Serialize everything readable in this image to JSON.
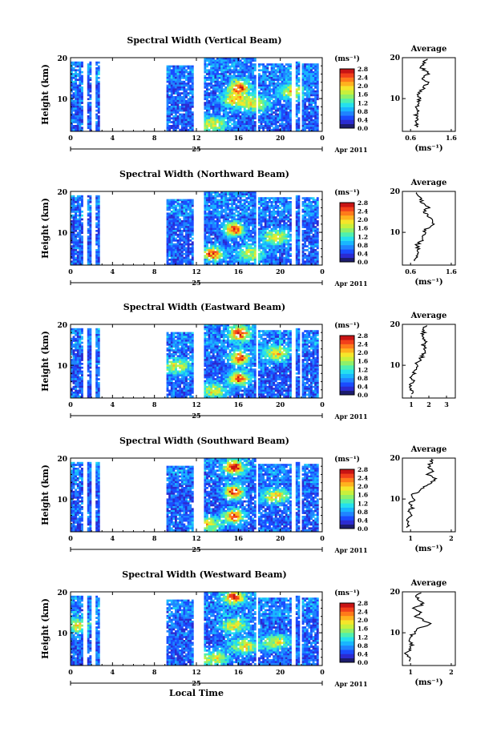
{
  "chart_data": [
    {
      "type": "heatmap",
      "title": "Spectral Width (Vertical Beam)",
      "ylabel": "Height (km)",
      "y_ticks": [
        "20",
        "10"
      ],
      "x_ticks": [
        "0",
        "4",
        "8",
        "12",
        "16",
        "20",
        "0"
      ],
      "date_label": "25",
      "month_label": "Apr 2011",
      "colorbar": {
        "unit": "(ms⁻¹)",
        "ticks": [
          "2.8",
          "2.4",
          "2.0",
          "1.6",
          "1.2",
          "0.8",
          "0.4",
          "0.0"
        ],
        "range": [
          0.0,
          2.8
        ]
      },
      "profile": {
        "title": "Average",
        "x_ticks": [
          "0.6",
          "1.6"
        ],
        "y_ticks": [
          "20",
          "10"
        ],
        "xlabel": "(ms⁻¹)",
        "height_km": [
          3,
          4,
          5,
          6,
          7,
          8,
          9,
          10,
          11,
          12,
          13,
          14,
          15,
          16,
          17,
          18,
          19,
          20
        ],
        "values": [
          0.72,
          0.74,
          0.76,
          0.72,
          0.78,
          0.75,
          0.8,
          0.82,
          0.78,
          0.85,
          0.95,
          1.02,
          0.9,
          1.05,
          0.92,
          0.85,
          0.95,
          0.98
        ]
      },
      "hot_spots": [
        [
          16,
          13,
          "peak"
        ],
        [
          15.5,
          10,
          "high"
        ],
        [
          17.5,
          9,
          "high"
        ],
        [
          21,
          12,
          "high"
        ],
        [
          13.5,
          4,
          "high"
        ]
      ]
    },
    {
      "type": "heatmap",
      "title": "Spectral Width (Northward Beam)",
      "ylabel": "Height (km)",
      "y_ticks": [
        "20",
        "10"
      ],
      "x_ticks": [
        "0",
        "4",
        "8",
        "12",
        "16",
        "20",
        "0"
      ],
      "date_label": "25",
      "month_label": "Apr 2011",
      "colorbar": {
        "unit": "(ms⁻¹)",
        "ticks": [
          "2.8",
          "2.4",
          "2.0",
          "1.6",
          "1.2",
          "0.8",
          "0.4",
          "0.0"
        ],
        "range": [
          0.0,
          2.8
        ]
      },
      "profile": {
        "title": "Average",
        "x_ticks": [
          "0.6",
          "1.6"
        ],
        "y_ticks": [
          "20",
          "10"
        ],
        "xlabel": "(ms⁻¹)",
        "height_km": [
          3,
          4,
          5,
          6,
          7,
          8,
          9,
          10,
          11,
          12,
          13,
          14,
          15,
          16,
          17,
          18,
          19,
          20
        ],
        "values": [
          0.7,
          0.72,
          0.78,
          0.8,
          0.75,
          0.9,
          0.88,
          0.95,
          1.0,
          1.2,
          1.1,
          1.05,
          0.95,
          1.02,
          0.92,
          0.85,
          0.8,
          0.78
        ]
      },
      "hot_spots": [
        [
          15.5,
          11,
          "peak"
        ],
        [
          13.5,
          5,
          "peak"
        ],
        [
          17,
          5,
          "high"
        ],
        [
          19.5,
          9,
          "high"
        ]
      ]
    },
    {
      "type": "heatmap",
      "title": "Spectral Width (Eastward Beam)",
      "ylabel": "Height (km)",
      "y_ticks": [
        "20",
        "10"
      ],
      "x_ticks": [
        "0",
        "4",
        "8",
        "12",
        "16",
        "20",
        "0"
      ],
      "date_label": "25",
      "month_label": "Apr 2011",
      "colorbar": {
        "unit": "(ms⁻¹)",
        "ticks": [
          "2.8",
          "2.4",
          "2.0",
          "1.6",
          "1.2",
          "0.8",
          "0.4",
          "0.0"
        ],
        "range": [
          0.0,
          2.8
        ]
      },
      "profile": {
        "title": "Average",
        "x_ticks": [
          "1",
          "2",
          "3"
        ],
        "y_ticks": [
          "20",
          "10"
        ],
        "xlabel": "",
        "height_km": [
          3,
          4,
          5,
          6,
          7,
          8,
          9,
          10,
          11,
          12,
          13,
          14,
          15,
          16,
          17,
          18,
          19,
          20
        ],
        "values": [
          1.0,
          1.05,
          0.95,
          1.1,
          1.0,
          1.15,
          1.2,
          1.3,
          1.4,
          1.6,
          1.7,
          1.8,
          1.65,
          1.85,
          1.6,
          1.7,
          1.75,
          1.8
        ]
      },
      "hot_spots": [
        [
          16,
          18,
          "peak"
        ],
        [
          16,
          12,
          "peak"
        ],
        [
          16,
          7,
          "peak"
        ],
        [
          13.5,
          4,
          "high"
        ],
        [
          19.5,
          13,
          "high"
        ],
        [
          10,
          10,
          "high"
        ]
      ]
    },
    {
      "type": "heatmap",
      "title": "Spectral Width (Southward Beam)",
      "ylabel": "Height (km)",
      "y_ticks": [
        "20",
        "10"
      ],
      "x_ticks": [
        "0",
        "4",
        "8",
        "12",
        "16",
        "20",
        "0"
      ],
      "date_label": "25",
      "month_label": "Apr 2011",
      "colorbar": {
        "unit": "(ms⁻¹)",
        "ticks": [
          "2.8",
          "2.4",
          "2.0",
          "1.6",
          "1.2",
          "0.8",
          "0.4",
          "0.0"
        ],
        "range": [
          0.0,
          2.8
        ]
      },
      "profile": {
        "title": "Average",
        "x_ticks": [
          "1",
          "2"
        ],
        "y_ticks": [
          "20",
          "10"
        ],
        "xlabel": "(ms⁻¹)",
        "height_km": [
          3,
          4,
          5,
          6,
          7,
          8,
          9,
          10,
          11,
          12,
          13,
          14,
          15,
          16,
          17,
          18,
          19,
          20
        ],
        "values": [
          0.9,
          0.95,
          0.9,
          1.0,
          0.95,
          1.05,
          1.0,
          1.1,
          1.05,
          1.2,
          1.35,
          1.5,
          1.6,
          1.4,
          1.55,
          1.45,
          1.5,
          1.55
        ]
      },
      "hot_spots": [
        [
          15.5,
          18,
          "peak"
        ],
        [
          15.5,
          12,
          "peak"
        ],
        [
          15.5,
          6,
          "peak"
        ],
        [
          13,
          4,
          "high"
        ],
        [
          19.5,
          11,
          "high"
        ]
      ]
    },
    {
      "type": "heatmap",
      "title": "Spectral Width (Westward Beam)",
      "ylabel": "Height (km)",
      "y_ticks": [
        "20",
        "10"
      ],
      "x_ticks": [
        "0",
        "4",
        "8",
        "12",
        "16",
        "20",
        "0"
      ],
      "date_label": "25",
      "month_label": "Apr 2011",
      "xlabel": "Local Time",
      "colorbar": {
        "unit": "(ms⁻¹)",
        "ticks": [
          "2.8",
          "2.4",
          "2.0",
          "1.6",
          "1.2",
          "0.8",
          "0.4",
          "0.0"
        ],
        "range": [
          0.0,
          2.8
        ]
      },
      "profile": {
        "title": "Average",
        "x_ticks": [
          "1",
          "2"
        ],
        "y_ticks": [
          "20",
          "10"
        ],
        "xlabel": "(ms⁻¹)",
        "height_km": [
          3,
          4,
          5,
          6,
          7,
          8,
          9,
          10,
          11,
          12,
          13,
          14,
          15,
          16,
          17,
          18,
          19,
          20
        ],
        "values": [
          0.95,
          1.0,
          0.9,
          1.0,
          1.05,
          0.95,
          1.0,
          1.1,
          1.2,
          1.5,
          1.3,
          1.15,
          1.25,
          1.1,
          1.3,
          1.2,
          1.15,
          1.25
        ]
      },
      "hot_spots": [
        [
          15.5,
          19,
          "peak"
        ],
        [
          15.5,
          12,
          "high"
        ],
        [
          13.5,
          4,
          "high"
        ],
        [
          16.5,
          7,
          "high"
        ],
        [
          19.5,
          8,
          "high"
        ],
        [
          0.5,
          12,
          "high"
        ]
      ]
    }
  ]
}
